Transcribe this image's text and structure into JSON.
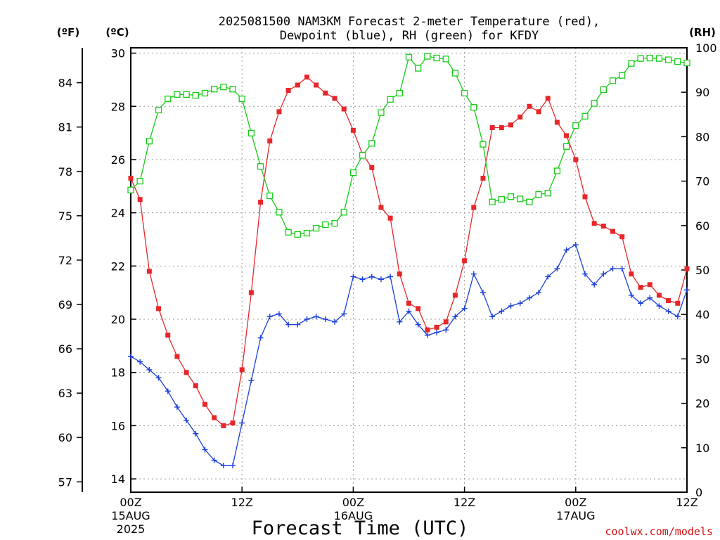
{
  "title_lines": [
    "2025081500 NAM3KM Forecast 2-meter Temperature (red),",
    "Dewpoint (blue), RH (green) for KFDY"
  ],
  "units": {
    "f": "(ºF)",
    "c": "(ºC)",
    "rh": "(RH)"
  },
  "credit": "coolwx.com/models",
  "colors": {
    "temp": "#e8262a",
    "dewpoint": "#1a3fdc",
    "rh": "#18cc18",
    "axis": "#000000",
    "grid": "#9a9a9a",
    "credit": "#d01010"
  },
  "chart_data": {
    "type": "line",
    "title": "2025081500 NAM3KM Forecast 2-meter Temperature (red), Dewpoint (blue), RH (green) for KFDY",
    "xlabel": "Forecast Time (UTC)",
    "x_hours": [
      0,
      1,
      2,
      3,
      4,
      5,
      6,
      7,
      8,
      9,
      10,
      11,
      12,
      13,
      14,
      15,
      16,
      17,
      18,
      19,
      20,
      21,
      22,
      23,
      24,
      25,
      26,
      27,
      28,
      29,
      30,
      31,
      32,
      33,
      34,
      35,
      36,
      37,
      38,
      39,
      40,
      41,
      42,
      43,
      44,
      45,
      46,
      47,
      48,
      49,
      50,
      51,
      52,
      53,
      54,
      55,
      56,
      57,
      58,
      59,
      60
    ],
    "xlim": [
      0,
      60
    ],
    "x_ticks": [
      {
        "hour": 0,
        "lines": [
          "00Z",
          "15AUG",
          "2025"
        ]
      },
      {
        "hour": 12,
        "lines": [
          "12Z"
        ]
      },
      {
        "hour": 24,
        "lines": [
          "00Z",
          "16AUG"
        ]
      },
      {
        "hour": 36,
        "lines": [
          "12Z"
        ]
      },
      {
        "hour": 48,
        "lines": [
          "00Z",
          "17AUG"
        ]
      },
      {
        "hour": 60,
        "lines": [
          "12Z"
        ]
      }
    ],
    "y_left_c": {
      "label": "(ºC)",
      "ylim": [
        13.5,
        30.2
      ],
      "ticks": [
        14,
        16,
        18,
        20,
        22,
        24,
        26,
        28,
        30
      ]
    },
    "y_left_f": {
      "label": "(ºF)",
      "ticks": [
        57,
        60,
        63,
        66,
        69,
        72,
        75,
        78,
        81,
        84
      ]
    },
    "y_right_rh": {
      "label": "(RH)",
      "ylim": [
        0,
        100
      ],
      "ticks": [
        0,
        10,
        20,
        30,
        40,
        50,
        60,
        70,
        80,
        90,
        100
      ]
    },
    "grid": true,
    "series": [
      {
        "name": "2-meter Temperature",
        "axis": "celsius",
        "marker": "filled-square",
        "values": [
          25.3,
          24.5,
          21.8,
          20.4,
          19.4,
          18.6,
          18.0,
          17.5,
          16.8,
          16.3,
          16.0,
          16.1,
          18.1,
          21.0,
          24.4,
          26.7,
          27.8,
          28.6,
          28.8,
          29.1,
          28.8,
          28.5,
          28.3,
          27.9,
          27.1,
          26.2,
          25.7,
          24.2,
          23.8,
          21.7,
          20.6,
          20.4,
          19.6,
          19.7,
          19.9,
          20.9,
          22.2,
          24.2,
          25.3,
          27.2,
          27.2,
          27.3,
          27.6,
          28.0,
          27.8,
          28.3,
          27.4,
          26.9,
          26.0,
          24.6,
          23.6,
          23.5,
          23.3,
          23.1,
          21.7,
          21.2,
          21.3,
          20.9,
          20.7,
          20.6,
          21.9
        ]
      },
      {
        "name": "Dewpoint",
        "axis": "celsius",
        "marker": "plus",
        "values": [
          18.6,
          18.4,
          18.1,
          17.8,
          17.3,
          16.7,
          16.2,
          15.7,
          15.1,
          14.7,
          14.5,
          14.5,
          16.1,
          17.7,
          19.3,
          20.1,
          20.2,
          19.8,
          19.8,
          20.0,
          20.1,
          20.0,
          19.9,
          20.2,
          21.6,
          21.5,
          21.6,
          21.5,
          21.6,
          19.9,
          20.3,
          19.8,
          19.4,
          19.5,
          19.6,
          20.1,
          20.4,
          21.7,
          21.0,
          20.1,
          20.3,
          20.5,
          20.6,
          20.8,
          21.0,
          21.6,
          21.9,
          22.6,
          22.8,
          21.7,
          21.3,
          21.7,
          21.9,
          21.9,
          20.9,
          20.6,
          20.8,
          20.5,
          20.3,
          20.1,
          21.1
        ]
      },
      {
        "name": "RH",
        "axis": "rh",
        "marker": "open-square",
        "values": [
          68,
          70,
          79,
          86,
          88.5,
          89.5,
          89.5,
          89.3,
          89.8,
          90.7,
          91.2,
          90.7,
          88.5,
          80.8,
          73.3,
          66.7,
          63,
          58.5,
          58,
          58.3,
          59.4,
          60.2,
          60.5,
          63,
          71.9,
          75.8,
          78.5,
          85.4,
          88.4,
          89.8,
          97.9,
          95.4,
          98.1,
          97.7,
          97.5,
          94.3,
          89.8,
          86.6,
          78.3,
          65.3,
          65.9,
          66.5,
          66.0,
          65.3,
          67.0,
          67.3,
          72.3,
          77.8,
          82.5,
          84.6,
          87.5,
          90.6,
          92.6,
          93.8,
          96.5,
          97.6,
          97.7,
          97.6,
          97.3,
          96.9,
          96.6
        ]
      }
    ]
  }
}
